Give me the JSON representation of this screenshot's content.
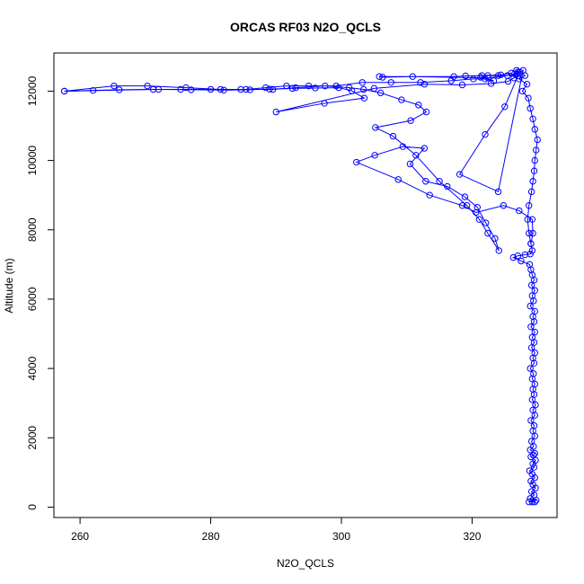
{
  "chart_data": {
    "type": "scatter",
    "title": "ORCAS RF03 N2O_QCLS",
    "xlabel": "N2O_QCLS",
    "ylabel": "Altitude (m)",
    "xlim": [
      256,
      333
    ],
    "ylim": [
      -300,
      13100
    ],
    "xticks": [
      260,
      280,
      300,
      320
    ],
    "yticks": [
      0,
      2000,
      4000,
      6000,
      8000,
      10000,
      12000
    ],
    "grid": false,
    "colors": {
      "series": "#0000ff",
      "axis": "#000000"
    },
    "series": [
      {
        "style": "line+open-circle",
        "points": [
          [
            329.6,
            150
          ],
          [
            329.2,
            150
          ],
          [
            328.7,
            150
          ],
          [
            329.8,
            200
          ],
          [
            328.9,
            250
          ],
          [
            329.5,
            350
          ],
          [
            329.1,
            450
          ],
          [
            329.7,
            550
          ],
          [
            329.3,
            650
          ],
          [
            329.0,
            750
          ],
          [
            329.6,
            850
          ],
          [
            329.2,
            950
          ],
          [
            328.8,
            1050
          ],
          [
            329.5,
            1150
          ],
          [
            329.3,
            1250
          ],
          [
            329.7,
            1350
          ],
          [
            329.0,
            1450
          ],
          [
            329.4,
            1500
          ],
          [
            329.6,
            1550
          ],
          [
            328.9,
            1650
          ],
          [
            329.4,
            1750
          ],
          [
            329.1,
            1900
          ],
          [
            329.6,
            2050
          ],
          [
            329.3,
            2200
          ],
          [
            329.5,
            2350
          ],
          [
            329.0,
            2500
          ],
          [
            329.6,
            2650
          ],
          [
            329.3,
            2800
          ],
          [
            329.7,
            2950
          ],
          [
            329.2,
            3100
          ],
          [
            329.5,
            3250
          ],
          [
            329.3,
            3400
          ],
          [
            329.6,
            3550
          ],
          [
            329.2,
            3700
          ],
          [
            329.4,
            3850
          ],
          [
            328.9,
            4000
          ],
          [
            329.5,
            4150
          ],
          [
            329.3,
            4300
          ],
          [
            329.6,
            4450
          ],
          [
            329.1,
            4600
          ],
          [
            329.5,
            4750
          ],
          [
            329.2,
            4900
          ],
          [
            329.6,
            5050
          ],
          [
            329.0,
            5200
          ],
          [
            329.5,
            5350
          ],
          [
            329.3,
            5500
          ],
          [
            329.6,
            5650
          ],
          [
            328.9,
            5800
          ],
          [
            329.4,
            5950
          ],
          [
            329.2,
            6100
          ],
          [
            329.6,
            6250
          ],
          [
            329.1,
            6400
          ],
          [
            329.5,
            6550
          ],
          [
            329.2,
            6700
          ],
          [
            329.0,
            6850
          ],
          [
            328.8,
            7000
          ],
          [
            327.5,
            7100
          ],
          [
            326.3,
            7200
          ],
          [
            327.0,
            7250
          ],
          [
            328.1,
            7280
          ],
          [
            328.9,
            7300
          ],
          [
            329.2,
            7400
          ],
          [
            329.0,
            7600
          ],
          [
            329.3,
            7900
          ],
          [
            329.2,
            8300
          ],
          [
            327.2,
            8550
          ],
          [
            324.8,
            8700
          ],
          [
            320.6,
            8500
          ],
          [
            318.5,
            8700
          ],
          [
            313.5,
            9000
          ],
          [
            308.7,
            9450
          ],
          [
            302.3,
            9950
          ],
          [
            305.1,
            10150
          ],
          [
            309.4,
            10400
          ],
          [
            312.7,
            10350
          ],
          [
            310.5,
            9900
          ],
          [
            312.9,
            9400
          ],
          [
            316.2,
            9250
          ],
          [
            318.9,
            8950
          ],
          [
            320.8,
            8650
          ],
          [
            322.1,
            8200
          ],
          [
            323.5,
            7750
          ],
          [
            324.1,
            7400
          ],
          [
            322.4,
            7900
          ],
          [
            321.1,
            8300
          ],
          [
            319.2,
            8700
          ],
          [
            315.0,
            9400
          ],
          [
            311.4,
            10150
          ],
          [
            307.9,
            10700
          ],
          [
            305.2,
            10950
          ],
          [
            310.6,
            11150
          ],
          [
            313.0,
            11400
          ],
          [
            311.8,
            11600
          ],
          [
            309.2,
            11750
          ],
          [
            306.0,
            11950
          ],
          [
            303.4,
            12050
          ],
          [
            301.2,
            12100
          ],
          [
            297.5,
            12150
          ],
          [
            293.0,
            12100
          ],
          [
            289.5,
            12050
          ],
          [
            284.6,
            12050
          ],
          [
            280.0,
            12050
          ],
          [
            275.4,
            12050
          ],
          [
            271.2,
            12050
          ],
          [
            257.6,
            12000
          ],
          [
            265.2,
            12150
          ],
          [
            270.3,
            12150
          ],
          [
            276.2,
            12100
          ],
          [
            281.5,
            12050
          ],
          [
            285.4,
            12050
          ],
          [
            288.4,
            12100
          ],
          [
            291.6,
            12150
          ],
          [
            295.0,
            12150
          ],
          [
            299.2,
            12150
          ],
          [
            303.2,
            12250
          ],
          [
            307.6,
            12250
          ],
          [
            312.1,
            12250
          ],
          [
            316.8,
            12300
          ],
          [
            320.2,
            12350
          ],
          [
            322.0,
            12350
          ],
          [
            323.3,
            12300
          ],
          [
            321.3,
            12400
          ],
          [
            322.4,
            12450
          ],
          [
            324.0,
            12450
          ],
          [
            325.4,
            12450
          ],
          [
            326.5,
            12500
          ],
          [
            327.0,
            12550
          ],
          [
            326.8,
            12600
          ],
          [
            327.3,
            12550
          ],
          [
            328.1,
            12450
          ],
          [
            327.2,
            12350
          ],
          [
            328.4,
            12200
          ],
          [
            327.7,
            12000
          ],
          [
            328.6,
            11800
          ],
          [
            328.9,
            11500
          ],
          [
            329.3,
            11200
          ],
          [
            329.6,
            10900
          ],
          [
            330.0,
            10600
          ],
          [
            329.8,
            10300
          ],
          [
            329.6,
            10000
          ],
          [
            329.5,
            9700
          ],
          [
            329.3,
            9400
          ],
          [
            329.1,
            9100
          ],
          [
            328.7,
            8700
          ],
          [
            328.5,
            8300
          ],
          [
            328.7,
            7900
          ],
          [
            329.0,
            7600
          ]
        ]
      },
      {
        "style": "line+open-circle",
        "points": [
          [
            257.6,
            12000
          ],
          [
            262.0,
            12020
          ],
          [
            266.0,
            12040
          ],
          [
            272.0,
            12050
          ],
          [
            277.0,
            12040
          ],
          [
            282.0,
            12030
          ],
          [
            286.0,
            12040
          ],
          [
            289.0,
            12060
          ],
          [
            292.5,
            12080
          ],
          [
            296.0,
            12090
          ],
          [
            299.6,
            12100
          ],
          [
            301.6,
            12010
          ],
          [
            303.5,
            11800
          ],
          [
            297.4,
            11650
          ],
          [
            290.0,
            11400
          ],
          [
            305.0,
            12080
          ],
          [
            312.7,
            12200
          ],
          [
            318.5,
            12180
          ],
          [
            322.9,
            12220
          ],
          [
            325.5,
            12280
          ],
          [
            326.4,
            12380
          ],
          [
            327.0,
            12440
          ],
          [
            325.0,
            11550
          ],
          [
            322.0,
            10750
          ],
          [
            318.1,
            9600
          ],
          [
            324.0,
            9100
          ],
          [
            327.8,
            12600
          ],
          [
            326.8,
            12480
          ],
          [
            322.4,
            12380
          ],
          [
            310.9,
            12420
          ],
          [
            306.3,
            12400
          ],
          [
            305.8,
            12420
          ],
          [
            317.2,
            12420
          ],
          [
            319.0,
            12440
          ],
          [
            321.5,
            12450
          ],
          [
            324.4,
            12470
          ],
          [
            326.0,
            12520
          ]
        ]
      }
    ]
  }
}
